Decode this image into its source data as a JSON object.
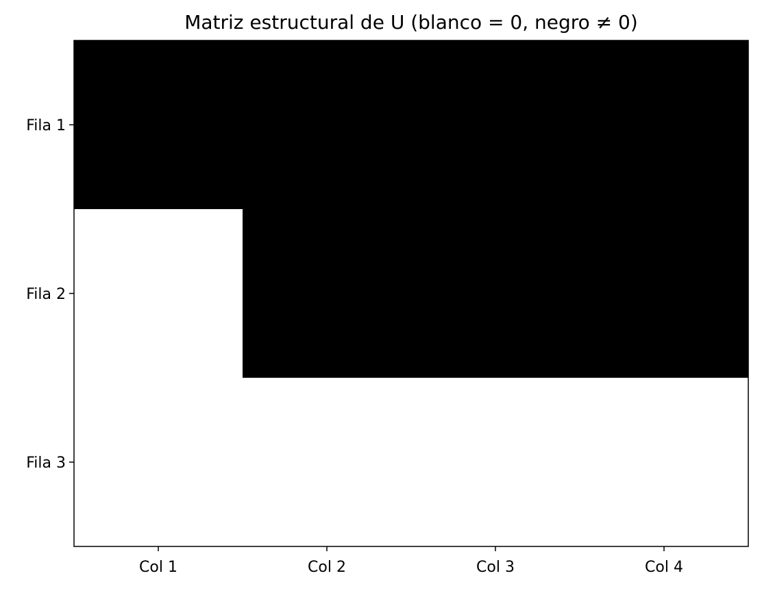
{
  "chart_data": {
    "type": "heatmap",
    "title": "Matriz estructural de U (blanco = 0, negro ≠ 0)",
    "rows": [
      "Fila 1",
      "Fila 2",
      "Fila 3"
    ],
    "columns": [
      "Col 1",
      "Col 2",
      "Col 3",
      "Col 4"
    ],
    "values": [
      [
        1,
        1,
        1,
        1
      ],
      [
        0,
        1,
        1,
        1
      ],
      [
        0,
        0,
        0,
        0
      ]
    ],
    "colors": {
      "zero": "#ffffff",
      "nonzero": "#000000"
    },
    "grid": false,
    "legend": "none"
  }
}
